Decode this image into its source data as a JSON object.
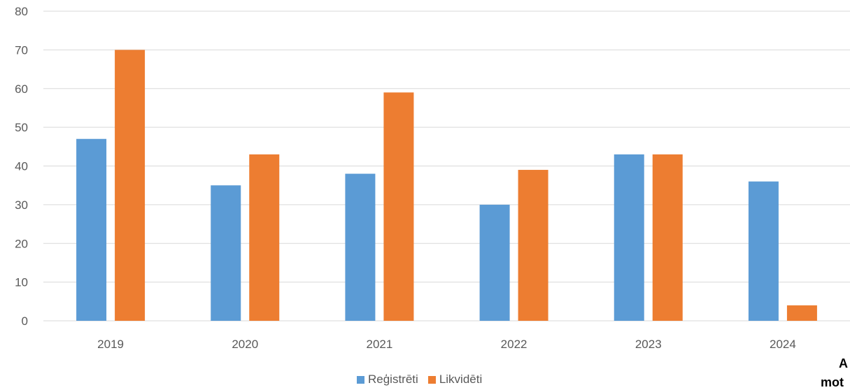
{
  "chart_data": {
    "type": "bar",
    "categories": [
      "2019",
      "2020",
      "2021",
      "2022",
      "2023",
      "2024"
    ],
    "series": [
      {
        "name": "Reģistrēti",
        "values": [
          47,
          35,
          38,
          30,
          43,
          36
        ],
        "color": "#5B9BD5"
      },
      {
        "name": "Likvidēti",
        "values": [
          70,
          43,
          59,
          39,
          43,
          4
        ],
        "color": "#ED7D31"
      }
    ],
    "yticks": [
      "0",
      "10",
      "20",
      "30",
      "40",
      "50",
      "60",
      "70",
      "80"
    ],
    "ylim": [
      0,
      80
    ],
    "grid": true,
    "legend_position": "bottom"
  },
  "clipped_text": {
    "line1": "A",
    "line2": "mot"
  }
}
